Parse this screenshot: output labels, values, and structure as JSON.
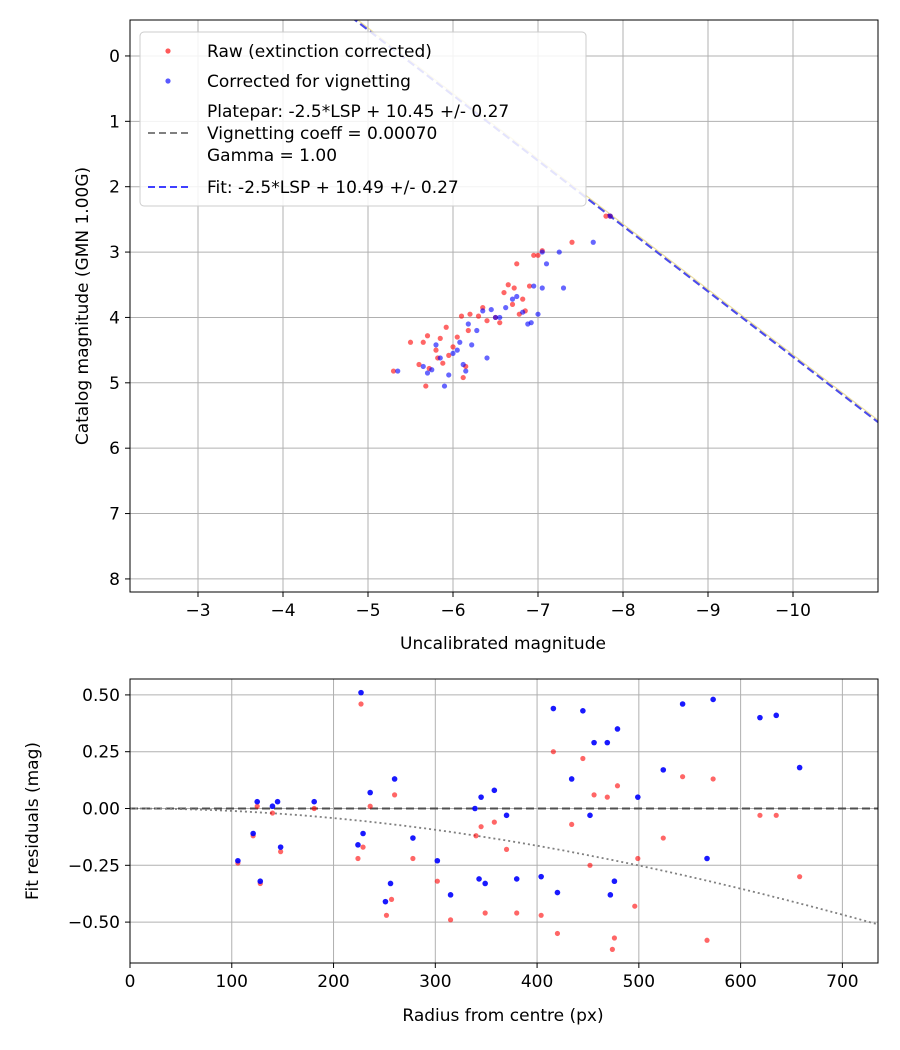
{
  "chart_data": [
    {
      "type": "scatter",
      "title": "",
      "xlabel": "Uncalibrated magnitude",
      "ylabel": "Catalog magnitude (GMN 1.00G)",
      "xlim": [
        -2.2,
        -11.0
      ],
      "ylim": [
        8.2,
        -0.55
      ],
      "x_ticks": [
        -3,
        -4,
        -5,
        -6,
        -7,
        -8,
        -9,
        -10
      ],
      "x_tick_labels": [
        "−3",
        "−4",
        "−5",
        "−6",
        "−7",
        "−8",
        "−9",
        "−10"
      ],
      "y_ticks": [
        0,
        1,
        2,
        3,
        4,
        5,
        6,
        7,
        8
      ],
      "y_tick_labels": [
        "0",
        "1",
        "2",
        "3",
        "4",
        "5",
        "6",
        "7",
        "8"
      ],
      "grid": true,
      "legend_position": "top-left",
      "legend": [
        {
          "label": "Raw (extinction corrected)",
          "marker": "dot",
          "color": "#ff0000"
        },
        {
          "label": "Corrected for vignetting",
          "marker": "dot",
          "color": "#0000ff"
        },
        {
          "label_lines": [
            "Platepar: -2.5*LSP + 10.45 +/- 0.27",
            "Vignetting coeff = 0.00070",
            "Gamma = 1.00"
          ],
          "marker": "dash",
          "color": "#808080"
        },
        {
          "label": "Fit: -2.5*LSP + 10.49 +/- 0.27",
          "marker": "dash",
          "color": "#3f3fff"
        }
      ],
      "series": [
        {
          "name": "Raw (extinction corrected)",
          "color": "#ff0000",
          "points": [
            [
              -5.3,
              4.82
            ],
            [
              -5.5,
              4.38
            ],
            [
              -5.6,
              4.72
            ],
            [
              -5.65,
              4.38
            ],
            [
              -5.7,
              4.28
            ],
            [
              -5.68,
              5.05
            ],
            [
              -5.72,
              4.78
            ],
            [
              -5.8,
              4.5
            ],
            [
              -5.82,
              4.62
            ],
            [
              -5.85,
              4.32
            ],
            [
              -5.88,
              4.7
            ],
            [
              -5.92,
              4.15
            ],
            [
              -5.95,
              4.58
            ],
            [
              -6.0,
              4.45
            ],
            [
              -6.05,
              4.3
            ],
            [
              -6.1,
              3.98
            ],
            [
              -6.12,
              4.92
            ],
            [
              -6.15,
              4.75
            ],
            [
              -6.18,
              4.2
            ],
            [
              -6.2,
              3.95
            ],
            [
              -6.3,
              3.98
            ],
            [
              -6.35,
              3.85
            ],
            [
              -6.4,
              4.05
            ],
            [
              -6.5,
              4.0
            ],
            [
              -6.55,
              4.08
            ],
            [
              -6.6,
              3.62
            ],
            [
              -6.65,
              3.5
            ],
            [
              -6.7,
              3.8
            ],
            [
              -6.72,
              3.55
            ],
            [
              -6.75,
              3.18
            ],
            [
              -6.78,
              3.95
            ],
            [
              -6.82,
              3.72
            ],
            [
              -6.85,
              3.9
            ],
            [
              -6.9,
              3.52
            ],
            [
              -6.95,
              3.05
            ],
            [
              -7.05,
              2.98
            ],
            [
              -7.4,
              2.85
            ],
            [
              -7.8,
              2.45
            ],
            [
              -7.85,
              2.45
            ],
            [
              -7.0,
              3.05
            ]
          ]
        },
        {
          "name": "Corrected for vignetting",
          "color": "#0000ff",
          "points": [
            [
              -5.35,
              4.82
            ],
            [
              -5.65,
              4.75
            ],
            [
              -5.7,
              4.85
            ],
            [
              -5.75,
              4.8
            ],
            [
              -5.8,
              4.42
            ],
            [
              -5.85,
              4.62
            ],
            [
              -5.9,
              5.05
            ],
            [
              -5.95,
              4.88
            ],
            [
              -6.0,
              4.55
            ],
            [
              -6.05,
              4.5
            ],
            [
              -6.08,
              4.38
            ],
            [
              -6.12,
              4.72
            ],
            [
              -6.15,
              4.82
            ],
            [
              -6.18,
              4.1
            ],
            [
              -6.22,
              4.42
            ],
            [
              -6.28,
              4.2
            ],
            [
              -6.35,
              3.9
            ],
            [
              -6.4,
              4.62
            ],
            [
              -6.45,
              3.88
            ],
            [
              -6.5,
              4.0
            ],
            [
              -6.55,
              4.0
            ],
            [
              -6.62,
              3.85
            ],
            [
              -6.7,
              3.72
            ],
            [
              -6.75,
              3.68
            ],
            [
              -6.82,
              3.92
            ],
            [
              -6.88,
              4.1
            ],
            [
              -6.92,
              4.08
            ],
            [
              -7.0,
              3.95
            ],
            [
              -7.05,
              3.55
            ],
            [
              -7.1,
              3.18
            ],
            [
              -7.25,
              3.0
            ],
            [
              -7.3,
              3.55
            ],
            [
              -7.65,
              2.85
            ],
            [
              -7.85,
              2.45
            ],
            [
              -6.95,
              3.52
            ],
            [
              -7.05,
              3.0
            ]
          ]
        }
      ],
      "lines": [
        {
          "name": "Platepar",
          "intercept": 10.45,
          "slope_mag_per_lsp": 1,
          "color": "#808080",
          "style": "dashed"
        },
        {
          "name": "Fit",
          "intercept": 10.49,
          "slope_mag_per_lsp": 1,
          "color": "#3f3fff",
          "style": "dashed"
        }
      ]
    },
    {
      "type": "scatter",
      "title": "",
      "xlabel": "Radius from centre (px)",
      "ylabel": "Fit residuals (mag)",
      "xlim": [
        0,
        735
      ],
      "ylim": [
        -0.68,
        0.57
      ],
      "x_ticks": [
        0,
        100,
        200,
        300,
        400,
        500,
        600,
        700
      ],
      "x_tick_labels": [
        "0",
        "100",
        "200",
        "300",
        "400",
        "500",
        "600",
        "700"
      ],
      "y_ticks": [
        0.5,
        0.25,
        0.0,
        -0.25,
        -0.5
      ],
      "y_tick_labels": [
        "0.50",
        "0.25",
        "0.00",
        "−0.25",
        "−0.50"
      ],
      "grid": true,
      "series": [
        {
          "name": "Raw (extinction corrected)",
          "color": "#ff0000",
          "points": [
            [
              106,
              -0.24
            ],
            [
              121,
              -0.12
            ],
            [
              125,
              0.01
            ],
            [
              128,
              -0.33
            ],
            [
              140,
              -0.02
            ],
            [
              148,
              -0.19
            ],
            [
              181,
              0.0
            ],
            [
              224,
              -0.22
            ],
            [
              227,
              0.46
            ],
            [
              229,
              -0.17
            ],
            [
              236,
              0.01
            ],
            [
              252,
              -0.47
            ],
            [
              257,
              -0.4
            ],
            [
              260,
              0.06
            ],
            [
              278,
              -0.22
            ],
            [
              302,
              -0.32
            ],
            [
              315,
              -0.49
            ],
            [
              340,
              -0.12
            ],
            [
              345,
              -0.08
            ],
            [
              349,
              -0.46
            ],
            [
              358,
              -0.06
            ],
            [
              370,
              -0.18
            ],
            [
              380,
              -0.46
            ],
            [
              404,
              -0.47
            ],
            [
              416,
              0.25
            ],
            [
              420,
              -0.55
            ],
            [
              434,
              -0.07
            ],
            [
              445,
              0.22
            ],
            [
              452,
              -0.25
            ],
            [
              456,
              0.06
            ],
            [
              469,
              0.05
            ],
            [
              474,
              -0.62
            ],
            [
              476,
              -0.57
            ],
            [
              479,
              0.1
            ],
            [
              496,
              -0.43
            ],
            [
              499,
              -0.22
            ],
            [
              524,
              -0.13
            ],
            [
              543,
              0.14
            ],
            [
              567,
              -0.58
            ],
            [
              573,
              0.13
            ],
            [
              619,
              -0.03
            ],
            [
              635,
              -0.03
            ],
            [
              658,
              -0.3
            ]
          ]
        },
        {
          "name": "Corrected for vignetting",
          "color": "#0000ff",
          "points": [
            [
              106,
              -0.23
            ],
            [
              121,
              -0.11
            ],
            [
              125,
              0.03
            ],
            [
              128,
              -0.32
            ],
            [
              140,
              0.01
            ],
            [
              145,
              0.03
            ],
            [
              148,
              -0.17
            ],
            [
              181,
              0.03
            ],
            [
              224,
              -0.16
            ],
            [
              227,
              0.51
            ],
            [
              229,
              -0.11
            ],
            [
              236,
              0.07
            ],
            [
              251,
              -0.41
            ],
            [
              256,
              -0.33
            ],
            [
              260,
              0.13
            ],
            [
              278,
              -0.13
            ],
            [
              302,
              -0.23
            ],
            [
              315,
              -0.38
            ],
            [
              339,
              0.0
            ],
            [
              343,
              -0.31
            ],
            [
              345,
              0.05
            ],
            [
              349,
              -0.33
            ],
            [
              358,
              0.08
            ],
            [
              370,
              -0.03
            ],
            [
              380,
              -0.31
            ],
            [
              404,
              -0.3
            ],
            [
              416,
              0.44
            ],
            [
              420,
              -0.37
            ],
            [
              434,
              0.13
            ],
            [
              445,
              0.43
            ],
            [
              452,
              -0.03
            ],
            [
              456,
              0.29
            ],
            [
              469,
              0.29
            ],
            [
              472,
              -0.38
            ],
            [
              476,
              -0.32
            ],
            [
              479,
              0.35
            ],
            [
              499,
              0.05
            ],
            [
              524,
              0.17
            ],
            [
              543,
              0.46
            ],
            [
              567,
              -0.22
            ],
            [
              573,
              0.48
            ],
            [
              619,
              0.4
            ],
            [
              635,
              0.41
            ],
            [
              658,
              0.18
            ]
          ]
        }
      ],
      "lines": [
        {
          "name": "zero",
          "y": 0.0,
          "color": "#444444",
          "style": "dashed"
        },
        {
          "name": "vignetting curve",
          "coeff": 0.0007,
          "color": "#808080",
          "style": "dotted"
        }
      ]
    }
  ]
}
